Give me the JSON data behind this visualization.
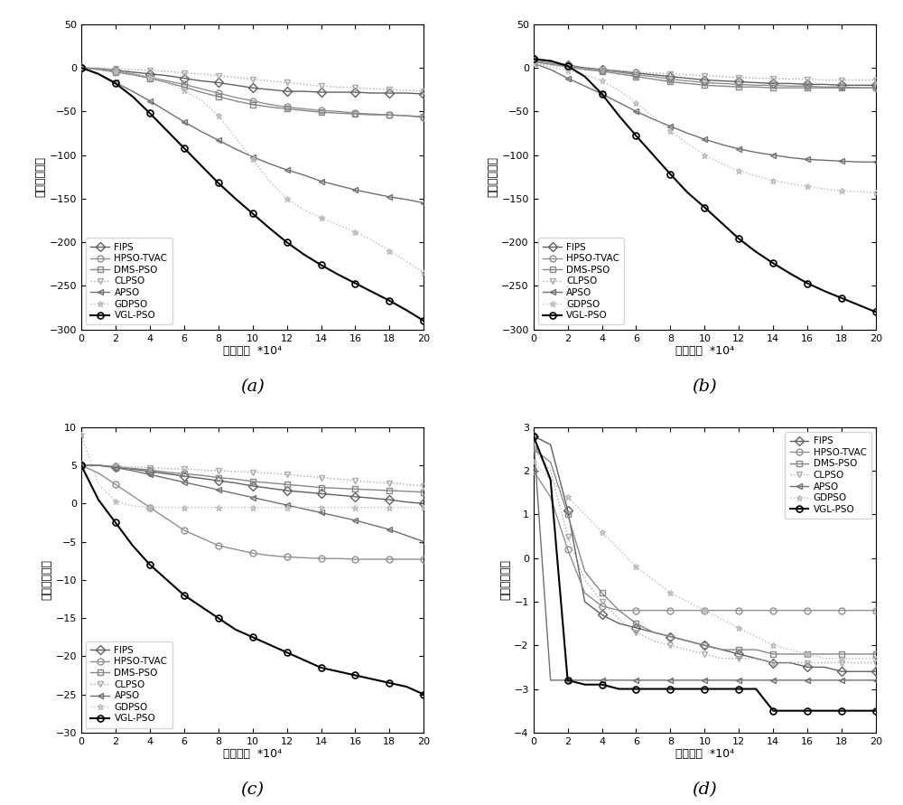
{
  "figure_size": [
    10.0,
    8.91
  ],
  "dpi": 100,
  "background_color": "#ffffff",
  "ylabel": "适应値对数値",
  "xlabel": "迭代次数  *10⁴",
  "legend_labels": [
    "FIPS",
    "HPSO-TVAC",
    "DMS-PSO",
    "CLPSO",
    "APSO",
    "GDPSO",
    "VGL-PSO"
  ],
  "subplot_labels": [
    "(a)",
    "(b)",
    "(c)",
    "(d)"
  ],
  "colors": {
    "FIPS": "#606060",
    "HPSO-TVAC": "#909090",
    "DMS-PSO": "#888888",
    "CLPSO": "#aaaaaa",
    "APSO": "#707070",
    "GDPSO": "#bbbbbb",
    "VGL-PSO": "#303030"
  },
  "markers": {
    "FIPS": "D",
    "HPSO-TVAC": "o",
    "DMS-PSO": "s",
    "CLPSO": "v",
    "APSO": "<",
    "GDPSO": "*",
    "VGL-PSO": "o"
  },
  "linestyles": {
    "FIPS": "-",
    "HPSO-TVAC": "-",
    "DMS-PSO": "-",
    "CLPSO": ":",
    "APSO": "-",
    "GDPSO": ":",
    "VGL-PSO": "-"
  },
  "linewidths": {
    "FIPS": 1.0,
    "HPSO-TVAC": 1.0,
    "DMS-PSO": 1.0,
    "CLPSO": 1.0,
    "APSO": 1.0,
    "GDPSO": 1.0,
    "VGL-PSO": 1.5
  },
  "markersizes": {
    "FIPS": 5,
    "HPSO-TVAC": 5,
    "DMS-PSO": 5,
    "CLPSO": 5,
    "APSO": 5,
    "GDPSO": 5,
    "VGL-PSO": 5
  },
  "subplot_a": {
    "xlim": [
      0,
      20
    ],
    "ylim": [
      -300,
      50
    ],
    "yticks": [
      50,
      0,
      -50,
      -100,
      -150,
      -200,
      -250,
      -300
    ],
    "xticks": [
      0,
      2,
      4,
      6,
      8,
      10,
      12,
      14,
      16,
      18,
      20
    ],
    "legend_loc": "lower left",
    "data": {
      "FIPS": [
        0,
        -1,
        -3,
        -5,
        -7,
        -9,
        -12,
        -15,
        -17,
        -20,
        -23,
        -25,
        -27,
        -27,
        -28,
        -28,
        -28,
        -29,
        -29,
        -29,
        -30
      ],
      "HPSO-TVAC": [
        0,
        -2,
        -4,
        -7,
        -11,
        -15,
        -19,
        -24,
        -29,
        -34,
        -38,
        -42,
        -45,
        -47,
        -49,
        -50,
        -52,
        -53,
        -54,
        -55,
        -57
      ],
      "DMS-PSO": [
        0,
        -2,
        -5,
        -8,
        -12,
        -17,
        -22,
        -28,
        -33,
        -38,
        -42,
        -45,
        -47,
        -49,
        -51,
        -52,
        -53,
        -54,
        -54,
        -55,
        -56
      ],
      "CLPSO": [
        0,
        0,
        -1,
        -2,
        -3,
        -4,
        -6,
        -7,
        -9,
        -11,
        -13,
        -15,
        -17,
        -19,
        -21,
        -22,
        -23,
        -24,
        -25,
        -26,
        -27
      ],
      "APSO": [
        0,
        -7,
        -17,
        -27,
        -38,
        -50,
        -62,
        -73,
        -83,
        -93,
        -102,
        -110,
        -117,
        -123,
        -130,
        -135,
        -140,
        -144,
        -148,
        -151,
        -155
      ],
      "GDPSO": [
        0,
        -2,
        -4,
        -7,
        -11,
        -17,
        -26,
        -37,
        -55,
        -80,
        -105,
        -130,
        -150,
        -163,
        -172,
        -180,
        -188,
        -198,
        -210,
        -222,
        -235
      ],
      "VGL-PSO": [
        0,
        -7,
        -18,
        -33,
        -52,
        -72,
        -92,
        -112,
        -132,
        -150,
        -167,
        -184,
        -200,
        -214,
        -226,
        -237,
        -247,
        -257,
        -267,
        -278,
        -290
      ]
    }
  },
  "subplot_b": {
    "xlim": [
      0,
      20
    ],
    "ylim": [
      -300,
      50
    ],
    "yticks": [
      50,
      0,
      -50,
      -100,
      -150,
      -200,
      -250,
      -300
    ],
    "xticks": [
      0,
      2,
      4,
      6,
      8,
      10,
      12,
      14,
      16,
      18,
      20
    ],
    "legend_loc": "lower left",
    "data": {
      "FIPS": [
        10,
        7,
        3,
        0,
        -2,
        -4,
        -6,
        -8,
        -10,
        -12,
        -14,
        -15,
        -16,
        -17,
        -18,
        -18,
        -19,
        -19,
        -20,
        -20,
        -20
      ],
      "HPSO-TVAC": [
        8,
        5,
        2,
        -1,
        -3,
        -5,
        -8,
        -10,
        -13,
        -15,
        -17,
        -18,
        -19,
        -20,
        -20,
        -21,
        -21,
        -22,
        -22,
        -23,
        -23
      ],
      "DMS-PSO": [
        7,
        4,
        1,
        -2,
        -4,
        -7,
        -10,
        -13,
        -16,
        -18,
        -20,
        -21,
        -22,
        -22,
        -23,
        -23,
        -23,
        -23,
        -23,
        -23,
        -23
      ],
      "CLPSO": [
        5,
        3,
        1,
        -1,
        -2,
        -3,
        -5,
        -6,
        -7,
        -8,
        -9,
        -10,
        -11,
        -12,
        -12,
        -13,
        -13,
        -14,
        -14,
        -14,
        -14
      ],
      "APSO": [
        5,
        -2,
        -12,
        -21,
        -30,
        -40,
        -50,
        -59,
        -67,
        -75,
        -82,
        -88,
        -93,
        -97,
        -100,
        -103,
        -105,
        -106,
        -107,
        -108,
        -108
      ],
      "GDPSO": [
        5,
        1,
        -3,
        -8,
        -15,
        -26,
        -40,
        -56,
        -72,
        -87,
        -100,
        -110,
        -118,
        -124,
        -129,
        -133,
        -136,
        -139,
        -141,
        -142,
        -143
      ],
      "VGL-PSO": [
        10,
        8,
        2,
        -10,
        -30,
        -55,
        -78,
        -100,
        -122,
        -143,
        -160,
        -178,
        -196,
        -211,
        -224,
        -236,
        -247,
        -256,
        -264,
        -272,
        -280
      ]
    }
  },
  "subplot_c": {
    "xlim": [
      0,
      20
    ],
    "ylim": [
      -30,
      10
    ],
    "yticks": [
      10,
      5,
      0,
      -5,
      -10,
      -15,
      -20,
      -25,
      -30
    ],
    "xticks": [
      0,
      2,
      4,
      6,
      8,
      10,
      12,
      14,
      16,
      18,
      20
    ],
    "legend_loc": "lower left",
    "data": {
      "FIPS": [
        5.0,
        5.0,
        4.8,
        4.5,
        4.2,
        3.9,
        3.6,
        3.3,
        3.0,
        2.7,
        2.3,
        2.0,
        1.7,
        1.5,
        1.3,
        1.1,
        0.9,
        0.7,
        0.5,
        0.2,
        0.0
      ],
      "HPSO-TVAC": [
        5.0,
        4.0,
        2.5,
        1.0,
        -0.5,
        -2.0,
        -3.5,
        -4.5,
        -5.5,
        -6.0,
        -6.5,
        -6.8,
        -7.0,
        -7.1,
        -7.2,
        -7.2,
        -7.3,
        -7.3,
        -7.3,
        -7.3,
        -7.3
      ],
      "DMS-PSO": [
        5.0,
        5.0,
        4.8,
        4.6,
        4.4,
        4.1,
        3.9,
        3.7,
        3.4,
        3.2,
        2.9,
        2.7,
        2.5,
        2.3,
        2.1,
        2.0,
        1.9,
        1.8,
        1.7,
        1.6,
        1.5
      ],
      "CLPSO": [
        5.0,
        5.0,
        4.9,
        4.8,
        4.7,
        4.6,
        4.5,
        4.4,
        4.3,
        4.2,
        4.1,
        4.0,
        3.8,
        3.6,
        3.4,
        3.2,
        3.0,
        2.8,
        2.7,
        2.5,
        2.3
      ],
      "APSO": [
        5.0,
        5.0,
        4.7,
        4.3,
        3.8,
        3.3,
        2.8,
        2.3,
        1.8,
        1.3,
        0.8,
        0.3,
        -0.2,
        -0.7,
        -1.2,
        -1.7,
        -2.2,
        -2.8,
        -3.4,
        -4.2,
        -5.0
      ],
      "GDPSO": [
        9.0,
        2.5,
        0.3,
        -0.3,
        -0.5,
        -0.5,
        -0.5,
        -0.5,
        -0.5,
        -0.5,
        -0.5,
        -0.5,
        -0.5,
        -0.5,
        -0.5,
        -0.5,
        -0.5,
        -0.5,
        -0.5,
        -0.5,
        -0.5
      ],
      "VGL-PSO": [
        5.0,
        0.5,
        -2.5,
        -5.5,
        -8.0,
        -10.0,
        -12.0,
        -13.5,
        -15.0,
        -16.5,
        -17.5,
        -18.5,
        -19.5,
        -20.5,
        -21.5,
        -22.0,
        -22.5,
        -23.0,
        -23.5,
        -24.0,
        -25.0
      ]
    }
  },
  "subplot_d": {
    "xlim": [
      0,
      20
    ],
    "ylim": [
      -4,
      3
    ],
    "yticks": [
      3,
      2,
      1,
      0,
      -1,
      -2,
      -3,
      -4
    ],
    "xticks": [
      0,
      2,
      4,
      6,
      8,
      10,
      12,
      14,
      16,
      18,
      20
    ],
    "legend_loc": "upper right",
    "data": {
      "FIPS": [
        2.8,
        2.6,
        1.1,
        -1.0,
        -1.3,
        -1.5,
        -1.6,
        -1.7,
        -1.8,
        -1.9,
        -2.0,
        -2.1,
        -2.2,
        -2.3,
        -2.4,
        -2.4,
        -2.5,
        -2.5,
        -2.6,
        -2.6,
        -2.6
      ],
      "HPSO-TVAC": [
        2.0,
        1.4,
        0.2,
        -0.8,
        -1.1,
        -1.2,
        -1.2,
        -1.2,
        -1.2,
        -1.2,
        -1.2,
        -1.2,
        -1.2,
        -1.2,
        -1.2,
        -1.2,
        -1.2,
        -1.2,
        -1.2,
        -1.2,
        -1.2
      ],
      "DMS-PSO": [
        2.5,
        2.2,
        1.0,
        -0.3,
        -0.8,
        -1.2,
        -1.5,
        -1.7,
        -1.8,
        -1.9,
        -2.0,
        -2.1,
        -2.1,
        -2.1,
        -2.2,
        -2.2,
        -2.2,
        -2.2,
        -2.2,
        -2.2,
        -2.2
      ],
      "CLPSO": [
        2.5,
        2.0,
        0.5,
        -0.5,
        -1.0,
        -1.4,
        -1.7,
        -1.9,
        -2.0,
        -2.1,
        -2.2,
        -2.3,
        -2.3,
        -2.3,
        -2.4,
        -2.4,
        -2.4,
        -2.4,
        -2.4,
        -2.4,
        -2.4
      ],
      "APSO": [
        2.8,
        -2.8,
        -2.8,
        -2.8,
        -2.8,
        -2.8,
        -2.8,
        -2.8,
        -2.8,
        -2.8,
        -2.8,
        -2.8,
        -2.8,
        -2.8,
        -2.8,
        -2.8,
        -2.8,
        -2.8,
        -2.8,
        -2.8,
        -2.8
      ],
      "GDPSO": [
        2.2,
        1.8,
        1.4,
        1.0,
        0.6,
        0.2,
        -0.2,
        -0.5,
        -0.8,
        -1.0,
        -1.2,
        -1.4,
        -1.6,
        -1.8,
        -2.0,
        -2.1,
        -2.2,
        -2.3,
        -2.3,
        -2.3,
        -2.3
      ],
      "VGL-PSO": [
        2.8,
        1.8,
        -2.8,
        -2.9,
        -2.9,
        -3.0,
        -3.0,
        -3.0,
        -3.0,
        -3.0,
        -3.0,
        -3.0,
        -3.0,
        -3.0,
        -3.5,
        -3.5,
        -3.5,
        -3.5,
        -3.5,
        -3.5,
        -3.5
      ]
    }
  }
}
